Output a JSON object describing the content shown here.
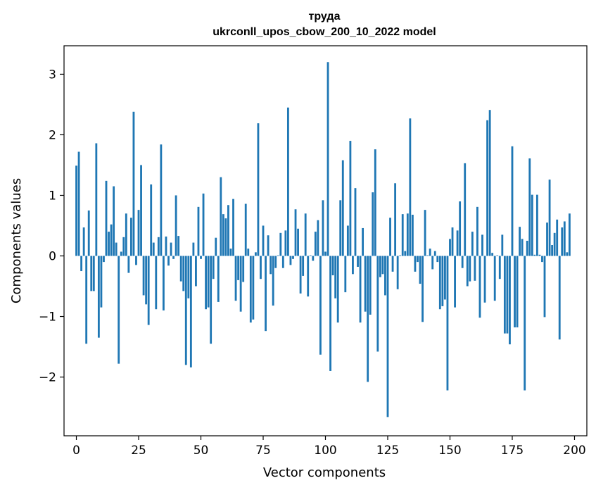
{
  "chart_data": {
    "type": "bar",
    "title": "труда",
    "subtitle": "ukrconll_upos_cbow_200_10_2022 model",
    "xlabel": "Vector components",
    "ylabel": "Components values",
    "xlim": [
      -4.95,
      204.95
    ],
    "ylim": [
      -2.97,
      3.47
    ],
    "xticks": [
      0,
      25,
      50,
      75,
      100,
      125,
      150,
      175,
      200
    ],
    "xtick_labels": [
      "0",
      "25",
      "50",
      "75",
      "100",
      "125",
      "150",
      "175",
      "200"
    ],
    "yticks": [
      -2,
      -1,
      0,
      1,
      2,
      3
    ],
    "ytick_labels": [
      "−2",
      "−1",
      "0",
      "1",
      "2",
      "3"
    ],
    "bar_color": "#1f77b4",
    "values": [
      1.49,
      1.72,
      -0.25,
      0.47,
      -1.45,
      0.75,
      -0.58,
      -0.58,
      1.86,
      -1.35,
      -0.85,
      -0.1,
      1.24,
      0.4,
      0.52,
      1.15,
      0.22,
      -1.78,
      0.07,
      0.31,
      0.7,
      -0.28,
      0.63,
      2.38,
      -0.15,
      0.76,
      1.5,
      -0.65,
      -0.8,
      -1.14,
      1.18,
      0.22,
      -0.88,
      0.31,
      1.84,
      -0.9,
      0.32,
      -0.16,
      0.22,
      -0.05,
      1.0,
      0.33,
      -0.42,
      -0.58,
      -1.8,
      -0.7,
      -1.84,
      0.22,
      -0.5,
      0.81,
      -0.05,
      1.03,
      -0.88,
      -0.85,
      -1.45,
      -0.38,
      0.3,
      -0.76,
      1.3,
      0.69,
      0.62,
      0.84,
      0.12,
      0.94,
      -0.74,
      -0.4,
      -0.92,
      -0.43,
      0.86,
      0.12,
      -1.1,
      -1.05,
      0.06,
      2.19,
      -0.38,
      0.5,
      -1.24,
      0.34,
      -0.3,
      -0.82,
      -0.2,
      0.01,
      0.38,
      -0.2,
      0.42,
      2.45,
      -0.15,
      -0.05,
      0.77,
      0.45,
      -0.62,
      -0.33,
      0.7,
      -0.67,
      0.01,
      -0.08,
      0.4,
      0.59,
      -1.63,
      0.92,
      0.07,
      3.2,
      -1.9,
      -0.32,
      -0.7,
      -1.1,
      0.92,
      1.58,
      -0.6,
      0.5,
      1.9,
      -0.3,
      1.12,
      -0.18,
      -1.1,
      0.46,
      -0.92,
      -2.08,
      -0.97,
      1.05,
      1.76,
      -1.58,
      -0.35,
      -0.3,
      -0.65,
      -2.66,
      0.63,
      -0.26,
      1.2,
      -0.55,
      0.01,
      0.69,
      0.08,
      0.7,
      2.27,
      0.68,
      -0.26,
      -0.1,
      -0.46,
      -1.09,
      0.76,
      0.01,
      0.12,
      -0.22,
      0.08,
      -0.1,
      -0.88,
      -0.83,
      -0.72,
      -2.22,
      0.28,
      0.47,
      -0.85,
      0.42,
      0.9,
      -0.2,
      1.53,
      -0.5,
      -0.42,
      0.4,
      -0.41,
      0.81,
      -1.02,
      0.35,
      -0.77,
      2.24,
      2.41,
      0.05,
      -0.74,
      0.01,
      -0.38,
      0.35,
      -1.28,
      -1.28,
      -1.46,
      1.81,
      -1.18,
      -1.18,
      0.48,
      0.28,
      -2.22,
      0.25,
      1.61,
      1.01,
      0.02,
      1.01,
      0.02,
      -0.1,
      -1.01,
      0.55,
      1.26,
      0.18,
      0.38,
      0.6,
      -1.38,
      0.47,
      0.57,
      0.06,
      0.7
    ]
  }
}
